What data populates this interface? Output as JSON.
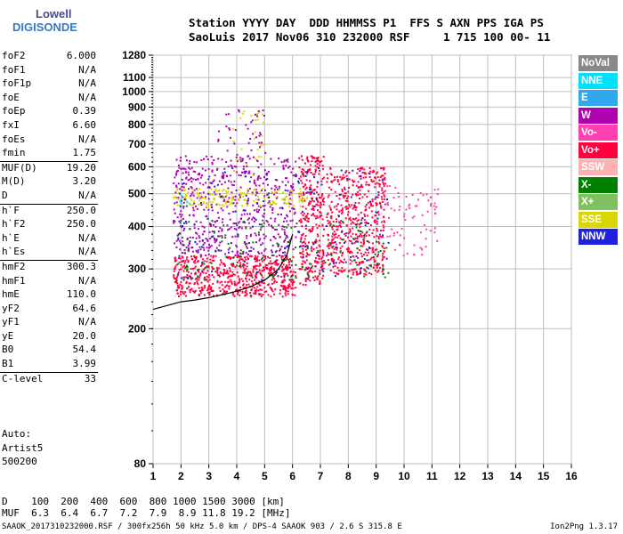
{
  "logo": {
    "line1": "Lowell",
    "line2": "DIGISONDE"
  },
  "header": {
    "line1": "Station YYYY DAY  DDD HHMMSS P1  FFS S AXN PPS IGA PS",
    "line2": "SaoLuis 2017 Nov06 310 232000 RSF     1 715 100 00- 11"
  },
  "params": [
    {
      "k": "foF2",
      "v": "6.000"
    },
    {
      "k": "foF1",
      "v": "N/A"
    },
    {
      "k": "foF1p",
      "v": "N/A"
    },
    {
      "k": "foE",
      "v": "N/A"
    },
    {
      "k": "foEp",
      "v": "0.39"
    },
    {
      "k": "fxI",
      "v": "6.60"
    },
    {
      "k": "foEs",
      "v": "N/A"
    },
    {
      "k": "fmin",
      "v": "1.75"
    },
    {
      "k": "MUF(D)",
      "v": "19.20"
    },
    {
      "k": "M(D)",
      "v": "3.20"
    },
    {
      "k": "D",
      "v": "N/A"
    },
    {
      "k": "h`F",
      "v": "250.0"
    },
    {
      "k": "h`F2",
      "v": "250.0"
    },
    {
      "k": "h`E",
      "v": "N/A"
    },
    {
      "k": "h`Es",
      "v": "N/A"
    },
    {
      "k": "hmF2",
      "v": "300.3"
    },
    {
      "k": "hmF1",
      "v": "N/A"
    },
    {
      "k": "hmE",
      "v": "110.0"
    },
    {
      "k": "yF2",
      "v": "64.6"
    },
    {
      "k": "yF1",
      "v": "N/A"
    },
    {
      "k": "yE",
      "v": "20.0"
    },
    {
      "k": "B0",
      "v": "54.4"
    },
    {
      "k": "B1",
      "v": "3.99"
    },
    {
      "k": "C-level",
      "v": "33"
    }
  ],
  "auto": {
    "line1": "Auto:",
    "line2": "Artist5",
    "line3": "500200"
  },
  "legend": [
    {
      "label": "NoVal",
      "color": "#888888"
    },
    {
      "label": "NNE",
      "color": "#00e0ff"
    },
    {
      "label": "E",
      "color": "#30a8f0"
    },
    {
      "label": "W",
      "color": "#b000b0"
    },
    {
      "label": "Vo-",
      "color": "#ff40b0"
    },
    {
      "label": "Vo+",
      "color": "#ff0040"
    },
    {
      "label": "SSW",
      "color": "#ffb0b0"
    },
    {
      "label": "X-",
      "color": "#008000"
    },
    {
      "label": "X+",
      "color": "#80c060"
    },
    {
      "label": "SSE",
      "color": "#d8d800"
    },
    {
      "label": "NNW",
      "color": "#2020e0"
    }
  ],
  "bottom": {
    "d_label": "D",
    "d_values": [
      "100",
      "200",
      "400",
      "600",
      "800",
      "1000",
      "1500",
      "3000"
    ],
    "d_unit": "[km]",
    "muf_label": "MUF",
    "muf_values": [
      "6.3",
      "6.4",
      "6.7",
      "7.2",
      "7.9",
      "8.9",
      "11.8",
      "19.2"
    ],
    "muf_unit": "[MHz]"
  },
  "footer": {
    "left": "SAAOK_2017310232000.RSF / 300fx256h 50 kHz 5.0 km / DPS-4 SAAOK 903 / 2.6 S 315.8 E",
    "right": "Ion2Png 1.3.17"
  },
  "chart_data": {
    "type": "scatter",
    "xlim": [
      1,
      16
    ],
    "ylim": [
      80,
      1280
    ],
    "yscale": "log",
    "x_ticks": [
      1,
      2,
      3,
      4,
      5,
      6,
      7,
      8,
      9,
      10,
      11,
      12,
      13,
      14,
      15,
      16
    ],
    "y_ticks": [
      80,
      200,
      300,
      400,
      500,
      600,
      700,
      800,
      900,
      1000,
      1100,
      1280
    ],
    "grid": true,
    "trace": {
      "name": "",
      "x": [
        1.0,
        1.5,
        2.0,
        2.5,
        3.0,
        3.5,
        4.0,
        4.5,
        5.0,
        5.5,
        5.8,
        6.0
      ],
      "y": [
        228,
        234,
        240,
        243,
        247,
        252,
        258,
        266,
        278,
        300,
        330,
        380
      ]
    },
    "echo_regions": [
      {
        "series": "Vo+",
        "x": [
          1.7,
          6.1
        ],
        "y": [
          250,
          330
        ],
        "density": 0.9
      },
      {
        "series": "Vo+",
        "x": [
          6.2,
          7.1
        ],
        "y": [
          270,
          650
        ],
        "density": 0.7
      },
      {
        "series": "Vo+",
        "x": [
          7.2,
          9.3
        ],
        "y": [
          290,
          600
        ],
        "density": 0.6
      },
      {
        "series": "W",
        "x": [
          1.7,
          6.1
        ],
        "y": [
          330,
          650
        ],
        "density": 0.35
      },
      {
        "series": "W",
        "x": [
          3.3,
          5.0
        ],
        "y": [
          650,
          900
        ],
        "density": 0.12
      },
      {
        "series": "SSE",
        "x": [
          1.7,
          6.5
        ],
        "y": [
          460,
          520
        ],
        "density": 0.5
      },
      {
        "series": "SSE",
        "x": [
          3.8,
          5.0
        ],
        "y": [
          550,
          900
        ],
        "density": 0.08
      },
      {
        "series": "X-",
        "x": [
          1.8,
          9.5
        ],
        "y": [
          280,
          420
        ],
        "density": 0.08
      },
      {
        "series": "NNE",
        "x": [
          1.8,
          2.3
        ],
        "y": [
          460,
          500
        ],
        "density": 0.3
      },
      {
        "series": "NNW",
        "x": [
          1.8,
          9.5
        ],
        "y": [
          280,
          600
        ],
        "density": 0.05
      },
      {
        "series": "Vo-",
        "x": [
          9.3,
          11.2
        ],
        "y": [
          330,
          530
        ],
        "density": 0.15
      }
    ]
  }
}
